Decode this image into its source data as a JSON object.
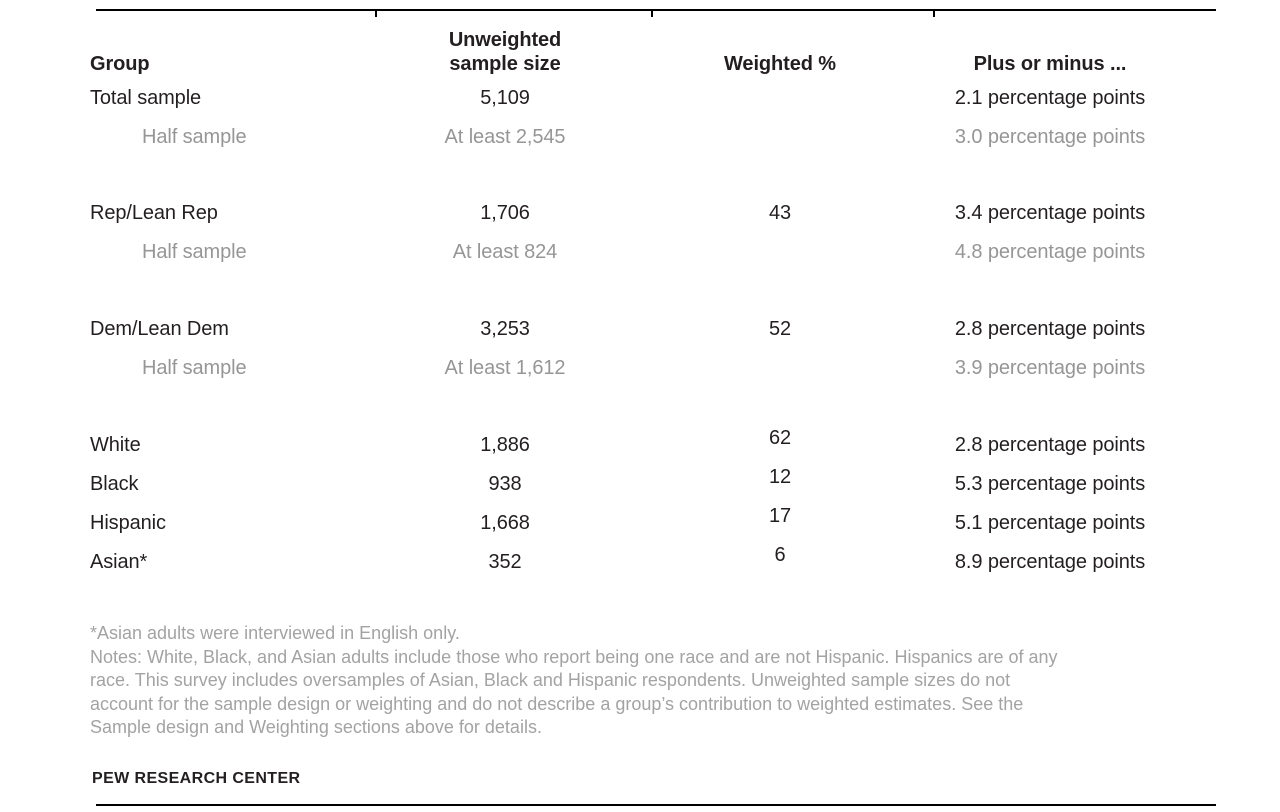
{
  "chart_data": {
    "type": "table",
    "columns": [
      "Group",
      "Unweighted\nsample size",
      "Weighted %",
      "Plus or minus ..."
    ],
    "rows": [
      {
        "group": "Total sample",
        "unweighted": "5,109",
        "weighted": "",
        "moe": "2.1 percentage points"
      },
      {
        "group": "Half sample",
        "unweighted": "At least 2,545",
        "weighted": "",
        "moe": "3.0 percentage points"
      },
      {
        "group": "Rep/Lean Rep",
        "unweighted": "1,706",
        "weighted": "43",
        "moe": "3.4 percentage points"
      },
      {
        "group": "Half sample",
        "unweighted": "At least 824",
        "weighted": "",
        "moe": "4.8 percentage points"
      },
      {
        "group": "Dem/Lean Dem",
        "unweighted": "3,253",
        "weighted": "52",
        "moe": "2.8 percentage points"
      },
      {
        "group": "Half sample",
        "unweighted": "At least 1,612",
        "weighted": "",
        "moe": "3.9 percentage points"
      },
      {
        "group": "White",
        "unweighted": "1,886",
        "weighted": "62",
        "moe": "2.8 percentage points"
      },
      {
        "group": "Black",
        "unweighted": "938",
        "weighted": "12",
        "moe": "5.3 percentage points"
      },
      {
        "group": "Hispanic",
        "unweighted": "1,668",
        "weighted": "17",
        "moe": "5.1 percentage points"
      },
      {
        "group": "Asian*",
        "unweighted": "352",
        "weighted": "6",
        "moe": "8.9 percentage points"
      }
    ],
    "notes_lines": [
      "*Asian adults were interviewed in English only.",
      "Notes: White, Black, and Asian adults include those who report being one race and are not Hispanic. Hispanics are of any",
      "race. This survey includes oversamples of Asian, Black and Hispanic respondents. Unweighted sample sizes do not",
      "account for the sample design or weighting and do not describe a group’s contribution to weighted estimates. See the",
      "Sample design and Weighting sections above for details."
    ],
    "source": "PEW RESEARCH CENTER",
    "colors": {
      "text_dark": "#231f20",
      "text_muted": "#969696",
      "text_notes": "#a3a3a3",
      "rule": "#000000"
    }
  }
}
